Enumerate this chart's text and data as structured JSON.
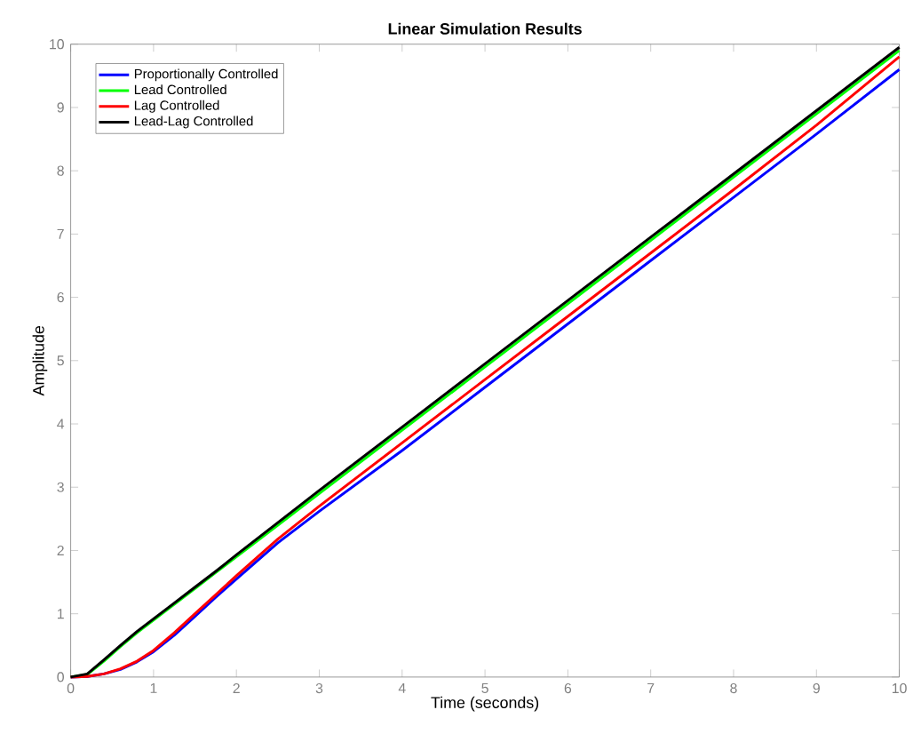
{
  "chart_data": {
    "type": "line",
    "title": "Linear Simulation Results",
    "xlabel": "Time (seconds)",
    "ylabel": "Amplitude",
    "x": [
      0,
      0.2,
      0.4,
      0.6,
      0.8,
      1,
      1.25,
      1.5,
      1.75,
      2,
      2.5,
      3,
      4,
      5,
      6,
      7,
      8,
      9,
      10
    ],
    "series": [
      {
        "name": "Proportionally Controlled",
        "color": "#0000ff",
        "values": [
          0,
          0.01,
          0.05,
          0.12,
          0.24,
          0.4,
          0.66,
          0.96,
          1.26,
          1.55,
          2.12,
          2.62,
          3.58,
          4.58,
          5.58,
          6.58,
          7.58,
          8.58,
          9.6
        ]
      },
      {
        "name": "Lead Controlled",
        "color": "#00ff00",
        "values": [
          0,
          0.04,
          0.25,
          0.48,
          0.7,
          0.9,
          1.15,
          1.4,
          1.65,
          1.9,
          2.4,
          2.9,
          3.9,
          4.9,
          5.9,
          6.9,
          7.9,
          8.9,
          9.9
        ]
      },
      {
        "name": "Lag Controlled",
        "color": "#ff0000",
        "values": [
          0,
          0.01,
          0.05,
          0.13,
          0.25,
          0.42,
          0.7,
          1.0,
          1.3,
          1.6,
          2.18,
          2.7,
          3.7,
          4.7,
          5.7,
          6.7,
          7.7,
          8.72,
          9.8
        ]
      },
      {
        "name": "Lead-Lag Controlled",
        "color": "#000000",
        "values": [
          0,
          0.05,
          0.27,
          0.5,
          0.72,
          0.92,
          1.17,
          1.42,
          1.67,
          1.93,
          2.44,
          2.95,
          3.95,
          4.95,
          5.95,
          6.95,
          7.95,
          8.95,
          9.95
        ]
      }
    ],
    "xlim": [
      0,
      10
    ],
    "ylim": [
      0,
      10
    ],
    "xticks": [
      0,
      1,
      2,
      3,
      4,
      5,
      6,
      7,
      8,
      9,
      10
    ],
    "yticks": [
      0,
      1,
      2,
      3,
      4,
      5,
      6,
      7,
      8,
      9,
      10
    ],
    "legend": "top left",
    "grid": false,
    "line_style": "solid",
    "marker": "none"
  }
}
